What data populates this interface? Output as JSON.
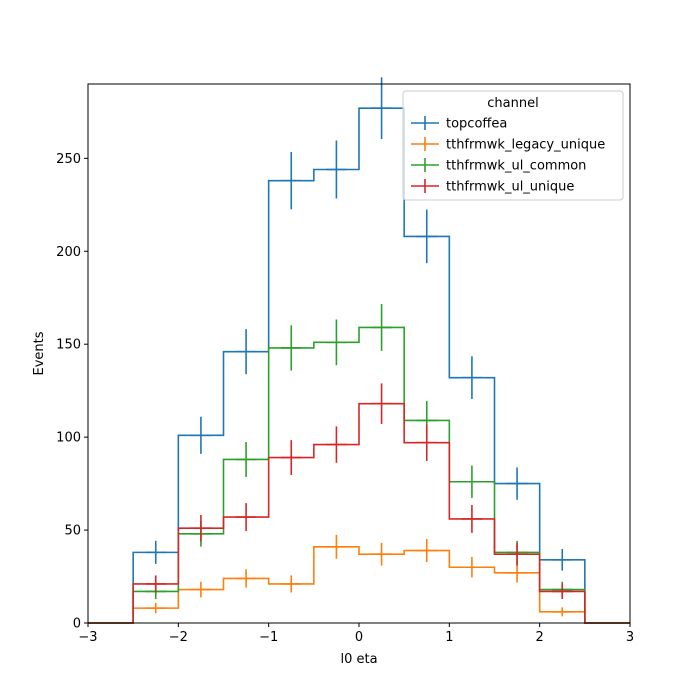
{
  "chart_data": {
    "type": "histogram",
    "xlabel": "l0 eta",
    "ylabel": "Events",
    "xlim": [
      -3,
      3
    ],
    "ylim": [
      0,
      290
    ],
    "bin_edges": [
      -3,
      -2.5,
      -2,
      -1.5,
      -1,
      -0.5,
      0,
      0.5,
      1,
      1.5,
      2,
      2.5,
      3
    ],
    "x_ticks": [
      -3,
      -2,
      -1,
      0,
      1,
      2,
      3
    ],
    "x_tick_labels": [
      "−3",
      "−2",
      "−1",
      "0",
      "1",
      "2",
      "3"
    ],
    "y_ticks": [
      0,
      50,
      100,
      150,
      200,
      250
    ],
    "y_tick_labels": [
      "0",
      "50",
      "100",
      "150",
      "200",
      "250"
    ],
    "legend": {
      "title": "channel",
      "placement": "top-right"
    },
    "series": [
      {
        "name": "topcoffea",
        "color": "#1f77b4",
        "values": [
          0,
          38,
          101,
          146,
          238,
          244,
          277,
          208,
          132,
          75,
          34,
          0
        ],
        "errors": [
          0,
          6.2,
          10.0,
          12.1,
          15.4,
          15.6,
          16.6,
          14.4,
          11.5,
          8.7,
          5.8,
          0
        ]
      },
      {
        "name": "tthfrmwk_legacy_unique",
        "color": "#ff7f0e",
        "values": [
          0,
          8,
          18,
          24,
          21,
          41,
          37,
          39,
          30,
          27,
          6,
          0
        ],
        "errors": [
          0,
          2.8,
          4.2,
          4.9,
          4.6,
          6.4,
          6.1,
          6.2,
          5.5,
          5.2,
          2.4,
          0
        ]
      },
      {
        "name": "tthfrmwk_ul_common",
        "color": "#2ca02c",
        "values": [
          0,
          17,
          48,
          88,
          148,
          151,
          159,
          109,
          76,
          38,
          18,
          0
        ],
        "errors": [
          0,
          4.1,
          6.9,
          9.4,
          12.2,
          12.3,
          12.6,
          10.4,
          8.7,
          6.2,
          4.2,
          0
        ]
      },
      {
        "name": "tthfrmwk_ul_unique",
        "color": "#d62728",
        "values": [
          0,
          21,
          51,
          57,
          89,
          96,
          118,
          97,
          56,
          37,
          17,
          0
        ],
        "errors": [
          0,
          4.6,
          7.1,
          7.5,
          9.4,
          9.8,
          10.9,
          9.8,
          7.5,
          6.1,
          4.1,
          0
        ]
      }
    ]
  }
}
